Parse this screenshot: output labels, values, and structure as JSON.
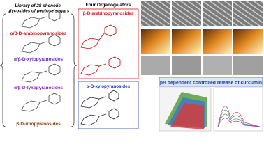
{
  "library": {
    "title": "Library of 28 phenolic glycosides of pentose sugars",
    "classes": [
      "α/β-D-arabinopyranosides",
      "α/β-D-xylopyranosides",
      "α/β-D-lyxopyranosides",
      "β-D-ribopyranosides"
    ]
  },
  "gelators": {
    "title": "Four Organogelators",
    "groups": [
      "β-D-arabinopyranosides",
      "α-D-xylopyranosides"
    ]
  },
  "release": {
    "title": "pH dependent controlled release of curcumin"
  }
}
